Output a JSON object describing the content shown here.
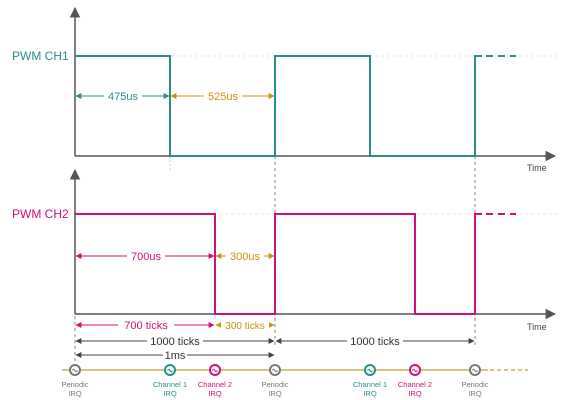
{
  "colors": {
    "ch1": "#2b8c8c",
    "ch2": "#d0107a",
    "orange": "#c8940c",
    "olive": "#c8b45a",
    "axis": "#555555",
    "guide": "#dddddd",
    "irq_gray": "#777777"
  },
  "channels": {
    "ch1_label": "PWM CH1",
    "ch2_label": "PWM CH2",
    "time_label": "Time"
  },
  "measures": {
    "ch1_high": "475us",
    "ch1_low": "525us",
    "ch2_high": "700us",
    "ch2_low": "300us"
  },
  "ticks": {
    "t700": "700 ticks",
    "t300": "300 ticks",
    "t1000a": "1000 ticks",
    "t1000b": "1000 ticks",
    "period": "1ms"
  },
  "irqs": [
    {
      "l1": "Periodic",
      "l2": "IRQ",
      "kind": "periodic",
      "icon": "clock-icon"
    },
    {
      "l1": "Channel 1",
      "l2": "IRQ",
      "kind": "ch1",
      "icon": "clock-icon"
    },
    {
      "l1": "Channel 2",
      "l2": "IRQ",
      "kind": "ch2",
      "icon": "clock-icon"
    },
    {
      "l1": "Periodic",
      "l2": "IRQ",
      "kind": "periodic",
      "icon": "clock-icon"
    },
    {
      "l1": "Channel 1",
      "l2": "IRQ",
      "kind": "ch1",
      "icon": "clock-icon"
    },
    {
      "l1": "Channel 2",
      "l2": "IRQ",
      "kind": "ch2",
      "icon": "clock-icon"
    },
    {
      "l1": "Periodic",
      "l2": "IRQ",
      "kind": "periodic",
      "icon": "clock-icon"
    }
  ]
}
